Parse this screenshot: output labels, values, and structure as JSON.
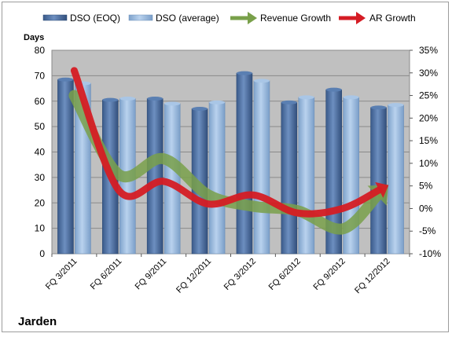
{
  "company": "Jarden",
  "colors": {
    "plot_bg": "#c0c0c0",
    "dso_eoq": "#4a6fa5",
    "dso_avg": "#94b6db",
    "revenue_growth": "#79a04a",
    "ar_growth": "#d51c24"
  },
  "legend": {
    "dso_eoq": "DSO (EOQ)",
    "dso_avg": "DSO (average)",
    "revenue": "Revenue Growth",
    "ar": "AR Growth"
  },
  "chart_data": {
    "type": "bar",
    "ylabel": "Days",
    "categories": [
      "FQ 3/2011",
      "FQ 6/2011",
      "FQ 9/2011",
      "FQ 12/2011",
      "FQ 3/2012",
      "FQ 6/2012",
      "FQ 9/2012",
      "FQ 12/2012"
    ],
    "ylim": [
      0,
      80
    ],
    "yticks": [
      0,
      10,
      20,
      30,
      40,
      50,
      60,
      70,
      80
    ],
    "y2lim": [
      -10,
      35
    ],
    "y2ticks": [
      "-10%",
      "-5%",
      "0%",
      "5%",
      "10%",
      "15%",
      "20%",
      "25%",
      "30%",
      "35%"
    ],
    "grid": true,
    "legend_position": "top",
    "series": [
      {
        "name": "DSO (EOQ)",
        "type": "bar",
        "axis": "left",
        "values": [
          68.5,
          60.5,
          61,
          57,
          71,
          59.5,
          64.5,
          57.5
        ]
      },
      {
        "name": "DSO (average)",
        "type": "bar",
        "axis": "left",
        "values": [
          67,
          61,
          59,
          59.5,
          68,
          61.5,
          61.5,
          58.5
        ]
      },
      {
        "name": "Revenue Growth",
        "type": "line",
        "axis": "right",
        "unit": "%",
        "values": [
          25,
          7.5,
          11,
          3,
          0.5,
          -0.5,
          -4.5,
          5
        ]
      },
      {
        "name": "AR Growth",
        "type": "line",
        "axis": "right",
        "unit": "%",
        "values": [
          30.5,
          4,
          6,
          1,
          3,
          -1,
          0,
          5
        ]
      }
    ]
  }
}
